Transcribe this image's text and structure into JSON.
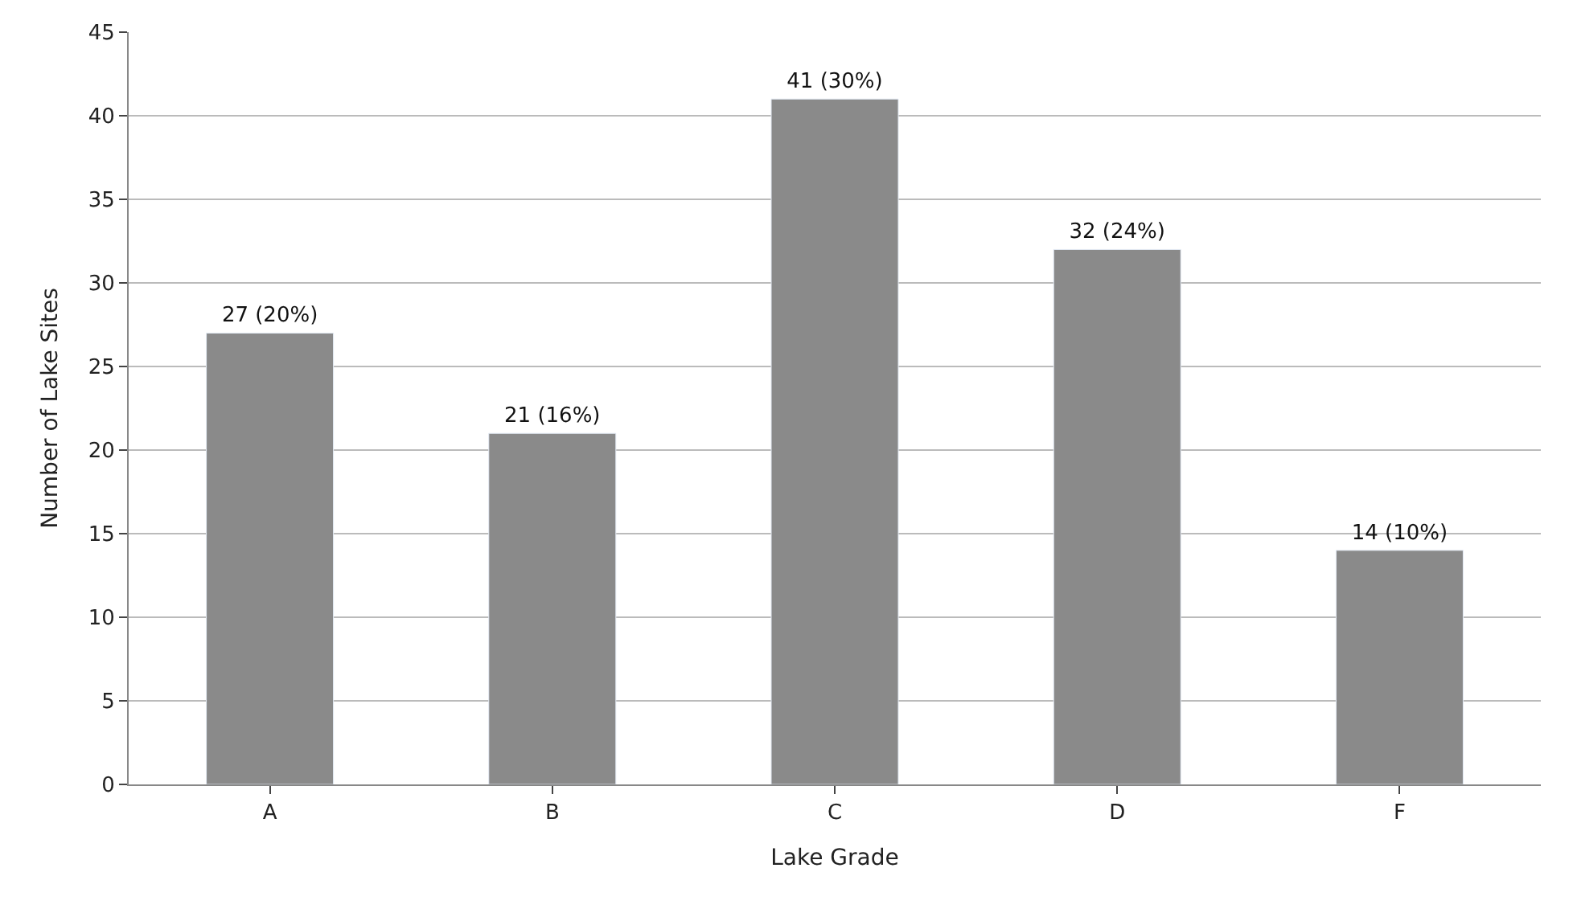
{
  "chart_data": {
    "type": "bar",
    "xlabel": "Lake Grade",
    "ylabel": "Number of Lake Sites",
    "categories": [
      "A",
      "B",
      "C",
      "D",
      "F"
    ],
    "values": [
      27,
      21,
      41,
      32,
      14
    ],
    "value_labels": [
      "27 (20%)",
      "21 (16%)",
      "41 (30%)",
      "32 (24%)",
      "14 (10%)"
    ],
    "color": "#8a8a8a",
    "ylim": [
      0,
      45
    ],
    "yticks": [
      0,
      5,
      10,
      15,
      20,
      25,
      30,
      35,
      40,
      45
    ],
    "grid": "y"
  }
}
